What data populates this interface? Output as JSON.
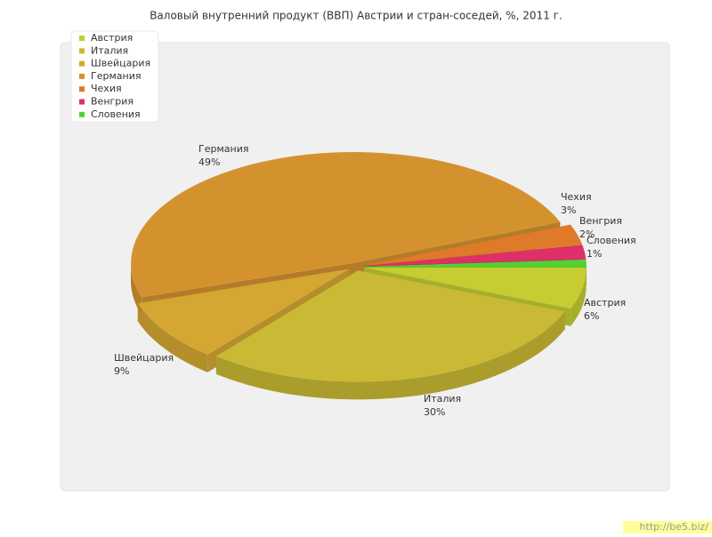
{
  "chart_data": {
    "type": "pie3d",
    "title": "Валовый внутренний продукт (ВВП) Австрии и стран-соседей, %, 2011 г.",
    "categories": [
      "Австрия",
      "Италия",
      "Швейцария",
      "Германия",
      "Чехия",
      "Венгрия",
      "Словения"
    ],
    "values": [
      6,
      30,
      9,
      49,
      3,
      2,
      1
    ],
    "value_labels": [
      "6%",
      "30%",
      "9%",
      "49%",
      "3%",
      "2%",
      "1%"
    ],
    "colors": [
      "#c5cd32",
      "#c9b934",
      "#d3a732",
      "#d4922f",
      "#df7a2a",
      "#de2f69",
      "#4fd432"
    ],
    "legend": "top-left"
  },
  "watermark": "http://be5.biz/"
}
